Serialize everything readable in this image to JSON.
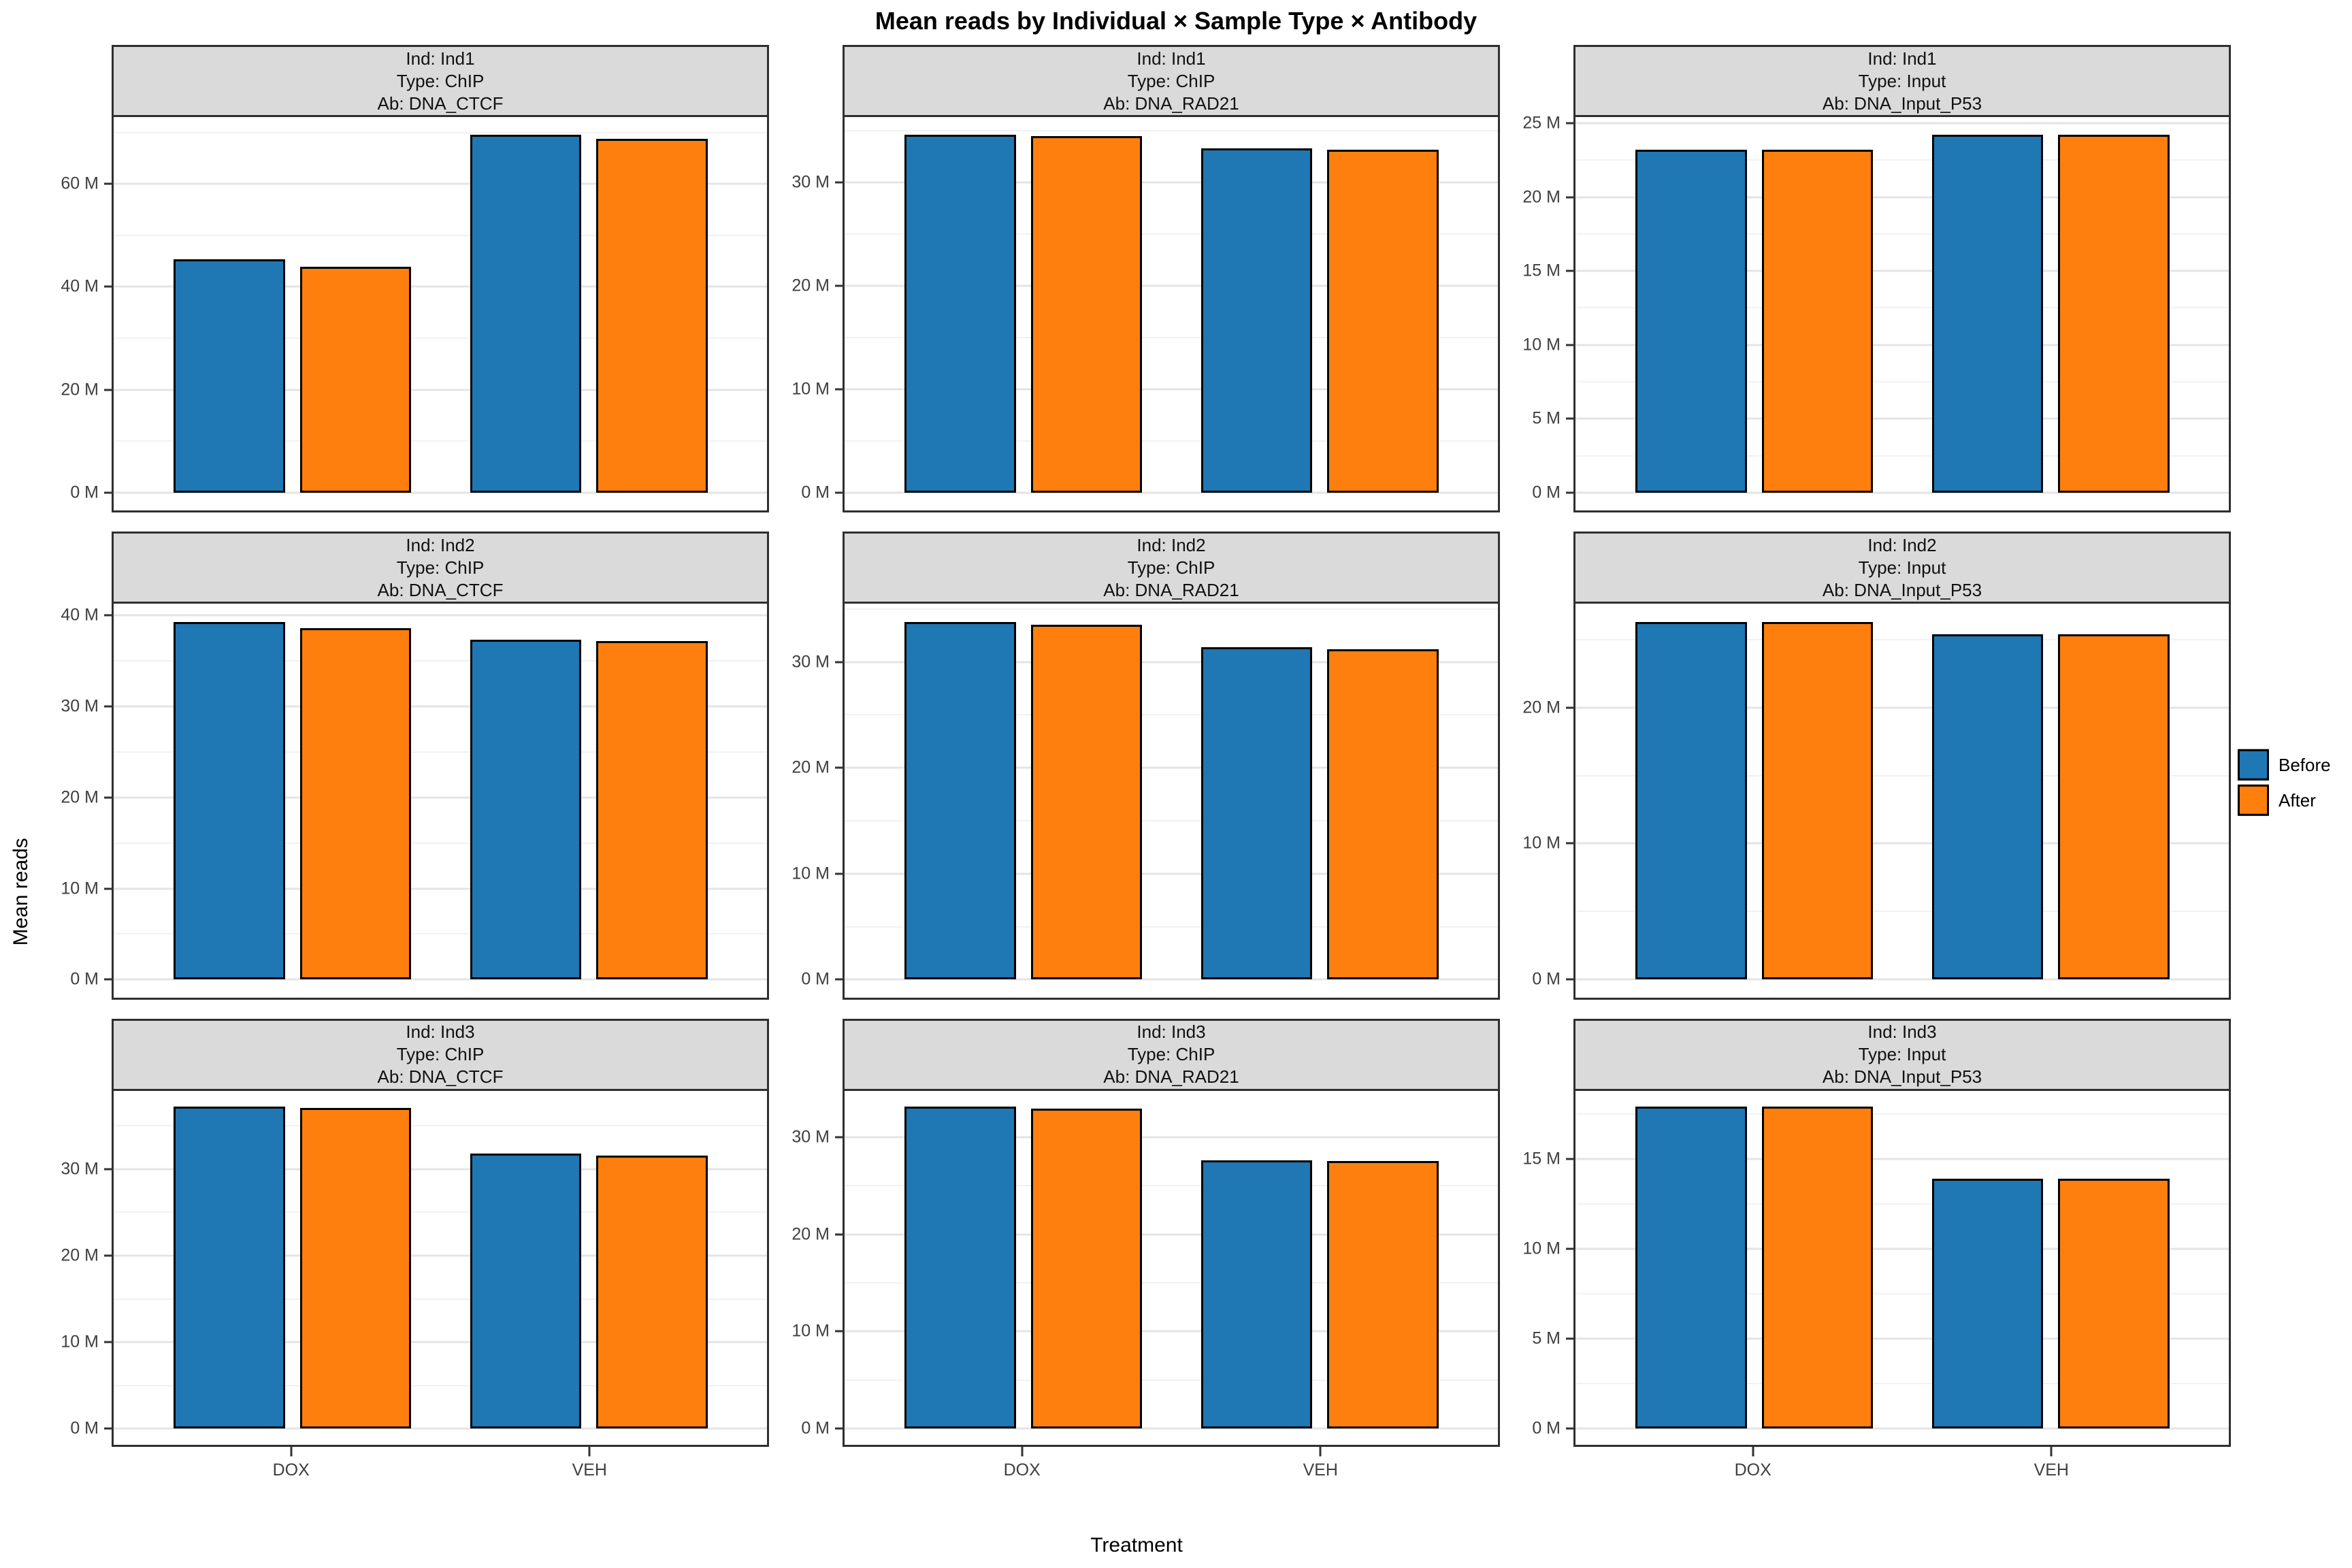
{
  "title": "Mean reads by Individual × Sample Type × Antibody",
  "axes": {
    "x_label": "Treatment",
    "y_label": "Mean reads"
  },
  "legend": {
    "items": [
      {
        "label": "Before",
        "color": "#1F77B4"
      },
      {
        "label": "After",
        "color": "#FF7F0E"
      }
    ]
  },
  "chart_data": {
    "type": "bar",
    "layout": "facet-grid 3x3, grouped dodged bars, free y scales, legend right",
    "unit": "M reads (millions)",
    "categories": [
      "DOX",
      "VEH"
    ],
    "series_names": [
      "Before",
      "After"
    ],
    "colors": {
      "Before": "#1F77B4",
      "After": "#FF7F0E"
    },
    "panels": [
      {
        "row": 1,
        "col": 1,
        "strip": [
          "Ind: Ind1",
          "Type: ChIP",
          "Ab: DNA_CTCF"
        ],
        "yticks": [
          0,
          20,
          40,
          60
        ],
        "series": [
          {
            "name": "Before",
            "values": [
              45.3,
              69.5
            ]
          },
          {
            "name": "After",
            "values": [
              43.9,
              68.7
            ]
          }
        ]
      },
      {
        "row": 1,
        "col": 2,
        "strip": [
          "Ind: Ind1",
          "Type: ChIP",
          "Ab: DNA_RAD21"
        ],
        "yticks": [
          0,
          10,
          20,
          30
        ],
        "series": [
          {
            "name": "Before",
            "values": [
              34.6,
              33.3
            ]
          },
          {
            "name": "After",
            "values": [
              34.5,
              33.2
            ]
          }
        ]
      },
      {
        "row": 1,
        "col": 3,
        "strip": [
          "Ind: Ind1",
          "Type: Input",
          "Ab: DNA_Input_P53"
        ],
        "yticks": [
          0,
          5,
          10,
          15,
          20,
          25
        ],
        "series": [
          {
            "name": "Before",
            "values": [
              23.2,
              24.2
            ]
          },
          {
            "name": "After",
            "values": [
              23.2,
              24.2
            ]
          }
        ]
      },
      {
        "row": 2,
        "col": 1,
        "strip": [
          "Ind: Ind2",
          "Type: ChIP",
          "Ab: DNA_CTCF"
        ],
        "yticks": [
          0,
          10,
          20,
          30,
          40
        ],
        "series": [
          {
            "name": "Before",
            "values": [
              39.3,
              37.3
            ]
          },
          {
            "name": "After",
            "values": [
              38.6,
              37.2
            ]
          }
        ]
      },
      {
        "row": 2,
        "col": 2,
        "strip": [
          "Ind: Ind2",
          "Type: ChIP",
          "Ab: DNA_RAD21"
        ],
        "yticks": [
          0,
          10,
          20,
          30
        ],
        "series": [
          {
            "name": "Before",
            "values": [
              33.8,
              31.4
            ]
          },
          {
            "name": "After",
            "values": [
              33.5,
              31.2
            ]
          }
        ]
      },
      {
        "row": 2,
        "col": 3,
        "strip": [
          "Ind: Ind2",
          "Type: Input",
          "Ab: DNA_Input_P53"
        ],
        "yticks": [
          0,
          10,
          20
        ],
        "series": [
          {
            "name": "Before",
            "values": [
              26.3,
              25.4
            ]
          },
          {
            "name": "After",
            "values": [
              26.3,
              25.4
            ]
          }
        ]
      },
      {
        "row": 3,
        "col": 1,
        "strip": [
          "Ind: Ind3",
          "Type: ChIP",
          "Ab: DNA_CTCF"
        ],
        "yticks": [
          0,
          10,
          20,
          30
        ],
        "series": [
          {
            "name": "Before",
            "values": [
              37.2,
              31.8
            ]
          },
          {
            "name": "After",
            "values": [
              37.1,
              31.6
            ]
          }
        ]
      },
      {
        "row": 3,
        "col": 2,
        "strip": [
          "Ind: Ind3",
          "Type: ChIP",
          "Ab: DNA_RAD21"
        ],
        "yticks": [
          0,
          10,
          20,
          30
        ],
        "series": [
          {
            "name": "Before",
            "values": [
              33.1,
              27.6
            ]
          },
          {
            "name": "After",
            "values": [
              32.9,
              27.5
            ]
          }
        ]
      },
      {
        "row": 3,
        "col": 3,
        "strip": [
          "Ind: Ind3",
          "Type: Input",
          "Ab: DNA_Input_P53"
        ],
        "yticks": [
          0,
          5,
          10,
          15
        ],
        "series": [
          {
            "name": "Before",
            "values": [
              17.9,
              13.9
            ]
          },
          {
            "name": "After",
            "values": [
              17.9,
              13.9
            ]
          }
        ]
      }
    ],
    "tick_label_suffix": " M",
    "x_tick_positions_pct": [
      27.3,
      72.7
    ],
    "bar_layout_pct": {
      "lefts": [
        9.2,
        28.5,
        54.6,
        73.9
      ],
      "width": 17
    },
    "y_expansion": 0.05,
    "grid": "major + minor horizontal gridlines, light grey on white, black panel border"
  }
}
